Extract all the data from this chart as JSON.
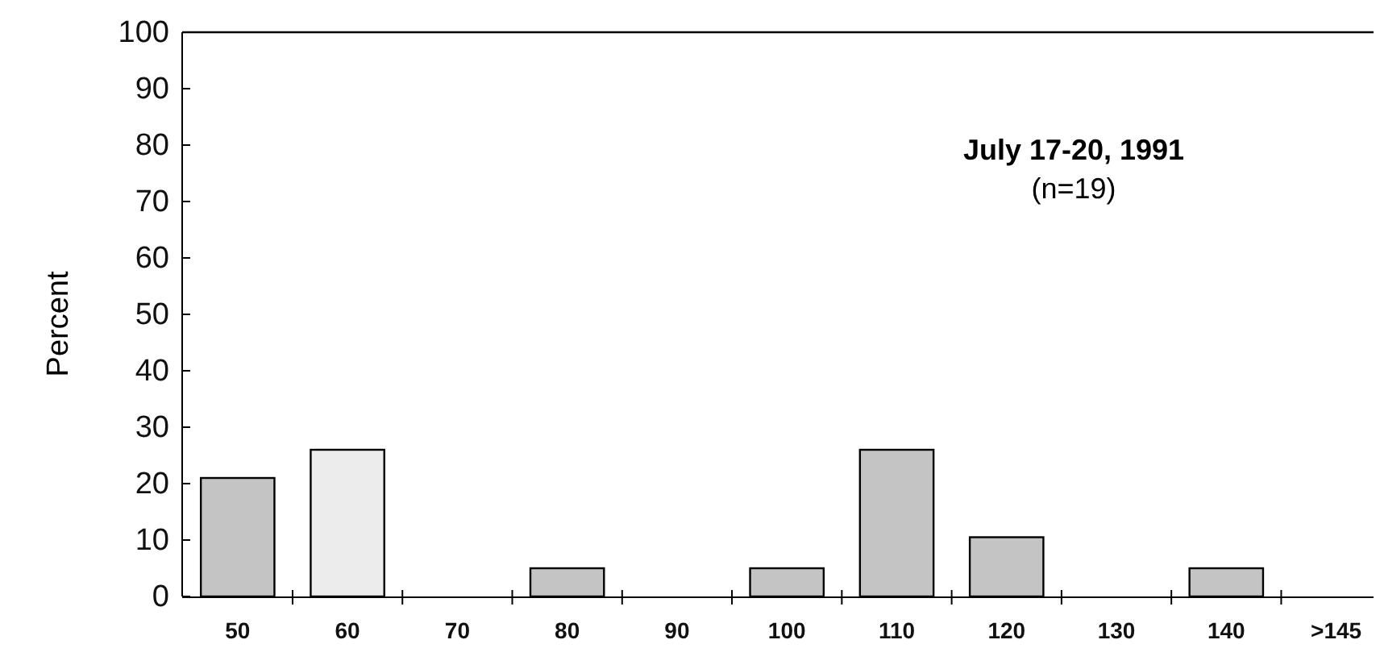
{
  "chart_data": {
    "type": "bar",
    "ylabel": "Percent",
    "categories": [
      "50",
      "60",
      "70",
      "80",
      "90",
      "100",
      "110",
      "120",
      "130",
      "140",
      ">145"
    ],
    "values": [
      21,
      26,
      0,
      5,
      0,
      5,
      26,
      10.5,
      0,
      5,
      0
    ],
    "colors": [
      "#c4c4c4",
      "#ececec",
      "#c4c4c4",
      "#c4c4c4",
      "#c4c4c4",
      "#c4c4c4",
      "#c4c4c4",
      "#c4c4c4",
      "#c4c4c4",
      "#c4c4c4",
      "#c4c4c4"
    ],
    "ylim": [
      0,
      100
    ],
    "yticks": [
      0,
      10,
      20,
      30,
      40,
      50,
      60,
      70,
      80,
      90,
      100
    ],
    "annotations": [
      "July 17-20, 1991",
      "(n=19)"
    ]
  }
}
